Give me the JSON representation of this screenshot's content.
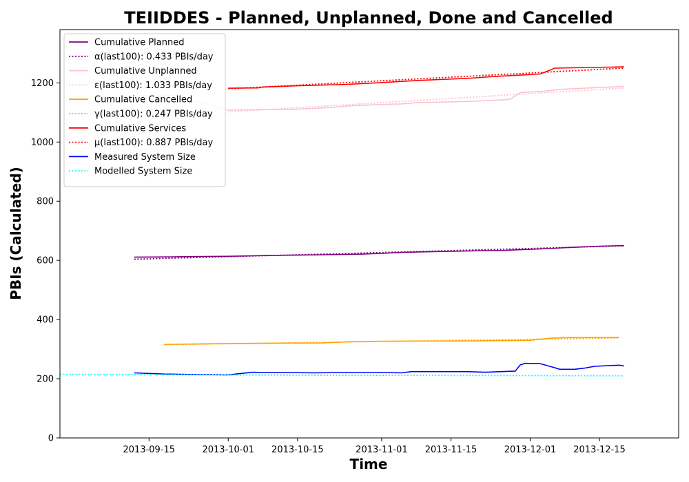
{
  "chart_data": {
    "type": "line",
    "title": "TEIIDDES - Planned, Unplanned, Done  and Cancelled",
    "xlabel": "Time",
    "ylabel": "PBIs (Calculated)",
    "xlim": [
      "2013-08-28",
      "2013-12-31"
    ],
    "ylim": [
      0,
      1380
    ],
    "x_ticks": [
      "2013-09-15",
      "2013-10-01",
      "2013-10-15",
      "2013-11-01",
      "2013-11-15",
      "2013-12-01",
      "2013-12-15"
    ],
    "y_ticks": [
      0,
      200,
      400,
      600,
      800,
      1000,
      1200
    ],
    "grid": false,
    "legend_position": "top-left",
    "series": [
      {
        "name": "Cumulative Planned",
        "color": "#800080",
        "style": "solid",
        "points": [
          [
            "2013-09-12",
            611
          ],
          [
            "2013-09-20",
            612
          ],
          [
            "2013-10-01",
            614
          ],
          [
            "2013-10-10",
            617
          ],
          [
            "2013-10-20",
            619
          ],
          [
            "2013-10-28",
            621
          ],
          [
            "2013-11-01",
            624
          ],
          [
            "2013-11-05",
            627
          ],
          [
            "2013-11-10",
            629
          ],
          [
            "2013-11-15",
            631
          ],
          [
            "2013-11-22",
            633
          ],
          [
            "2013-11-26",
            634
          ],
          [
            "2013-11-30",
            637
          ],
          [
            "2013-12-05",
            640
          ],
          [
            "2013-12-08",
            643
          ],
          [
            "2013-12-12",
            646
          ],
          [
            "2013-12-15",
            648
          ],
          [
            "2013-12-20",
            650
          ]
        ]
      },
      {
        "name": "α(last100): 0.433 PBIs/day",
        "color": "#800080",
        "style": "dotted",
        "points": [
          [
            "2013-09-12",
            604
          ],
          [
            "2013-12-20",
            649
          ]
        ]
      },
      {
        "name": "Cumulative Unplanned",
        "color": "#ffc0cb",
        "style": "solid",
        "points": [
          [
            "2013-09-12",
            1157
          ],
          [
            "2013-09-20",
            1158
          ],
          [
            "2013-10-01",
            1108
          ],
          [
            "2013-10-05",
            1109
          ],
          [
            "2013-10-15",
            1111
          ],
          [
            "2013-10-22",
            1117
          ],
          [
            "2013-10-25",
            1122
          ],
          [
            "2013-11-01",
            1127
          ],
          [
            "2013-11-05",
            1129
          ],
          [
            "2013-11-08",
            1133
          ],
          [
            "2013-11-15",
            1136
          ],
          [
            "2013-11-20",
            1138
          ],
          [
            "2013-11-26",
            1143
          ],
          [
            "2013-11-27",
            1145
          ],
          [
            "2013-11-29",
            1167
          ],
          [
            "2013-12-04",
            1172
          ],
          [
            "2013-12-07",
            1178
          ],
          [
            "2013-12-12",
            1182
          ],
          [
            "2013-12-17",
            1186
          ],
          [
            "2013-12-20",
            1188
          ]
        ]
      },
      {
        "name": "ε(last100): 1.033 PBIs/day",
        "color": "#ffc0cb",
        "style": "dotted",
        "points": [
          [
            "2013-10-01",
            1102
          ],
          [
            "2013-12-20",
            1183
          ]
        ]
      },
      {
        "name": "Cumulative Cancelled",
        "color": "#ffa500",
        "style": "solid",
        "points": [
          [
            "2013-09-18",
            316
          ],
          [
            "2013-10-01",
            319
          ],
          [
            "2013-10-20",
            321
          ],
          [
            "2013-10-26",
            325
          ],
          [
            "2013-11-01",
            327
          ],
          [
            "2013-11-20",
            328
          ],
          [
            "2013-12-01",
            330
          ],
          [
            "2013-12-05",
            337
          ],
          [
            "2013-12-08",
            339
          ],
          [
            "2013-12-19",
            340
          ]
        ]
      },
      {
        "name": "γ(last100): 0.247 PBIs/day",
        "color": "#ffa500",
        "style": "dotted",
        "points": [
          [
            "2013-09-18",
            315
          ],
          [
            "2013-12-19",
            338
          ]
        ]
      },
      {
        "name": "Cumulative Services",
        "color": "#ff0000",
        "style": "solid",
        "points": [
          [
            "2013-10-01",
            1182
          ],
          [
            "2013-10-07",
            1183
          ],
          [
            "2013-10-08",
            1186
          ],
          [
            "2013-10-15",
            1190
          ],
          [
            "2013-10-25",
            1195
          ],
          [
            "2013-11-01",
            1201
          ],
          [
            "2013-11-08",
            1208
          ],
          [
            "2013-11-15",
            1213
          ],
          [
            "2013-11-19",
            1216
          ],
          [
            "2013-11-24",
            1222
          ],
          [
            "2013-11-30",
            1227
          ],
          [
            "2013-12-03",
            1230
          ],
          [
            "2013-12-05",
            1243
          ],
          [
            "2013-12-06",
            1250
          ],
          [
            "2013-12-20",
            1254
          ]
        ]
      },
      {
        "name": "μ(last100): 0.887 PBIs/day",
        "color": "#ff0000",
        "style": "dotted",
        "points": [
          [
            "2013-10-01",
            1180
          ],
          [
            "2013-12-20",
            1250
          ]
        ]
      },
      {
        "name": "Measured System Size",
        "color": "#0000ff",
        "style": "solid",
        "points": [
          [
            "2013-09-12",
            220
          ],
          [
            "2013-09-18",
            216
          ],
          [
            "2013-09-25",
            214
          ],
          [
            "2013-10-01",
            213
          ],
          [
            "2013-10-03",
            217
          ],
          [
            "2013-10-06",
            222
          ],
          [
            "2013-10-08",
            221
          ],
          [
            "2013-10-12",
            221
          ],
          [
            "2013-10-18",
            220
          ],
          [
            "2013-10-25",
            221
          ],
          [
            "2013-11-01",
            221
          ],
          [
            "2013-11-05",
            220
          ],
          [
            "2013-11-07",
            224
          ],
          [
            "2013-11-12",
            224
          ],
          [
            "2013-11-18",
            224
          ],
          [
            "2013-11-22",
            222
          ],
          [
            "2013-11-28",
            226
          ],
          [
            "2013-11-29",
            247
          ],
          [
            "2013-11-30",
            252
          ],
          [
            "2013-12-03",
            251
          ],
          [
            "2013-12-05",
            242
          ],
          [
            "2013-12-07",
            232
          ],
          [
            "2013-12-10",
            232
          ],
          [
            "2013-12-12",
            236
          ],
          [
            "2013-12-14",
            242
          ],
          [
            "2013-12-19",
            246
          ],
          [
            "2013-12-20",
            243
          ]
        ]
      },
      {
        "name": "Modelled System Size",
        "color": "#00ffff",
        "style": "dotted",
        "points": [
          [
            "2013-08-28",
            215
          ],
          [
            "2013-09-15",
            214
          ],
          [
            "2013-10-15",
            212
          ],
          [
            "2013-11-15",
            211
          ],
          [
            "2013-12-20",
            210
          ]
        ]
      }
    ]
  }
}
